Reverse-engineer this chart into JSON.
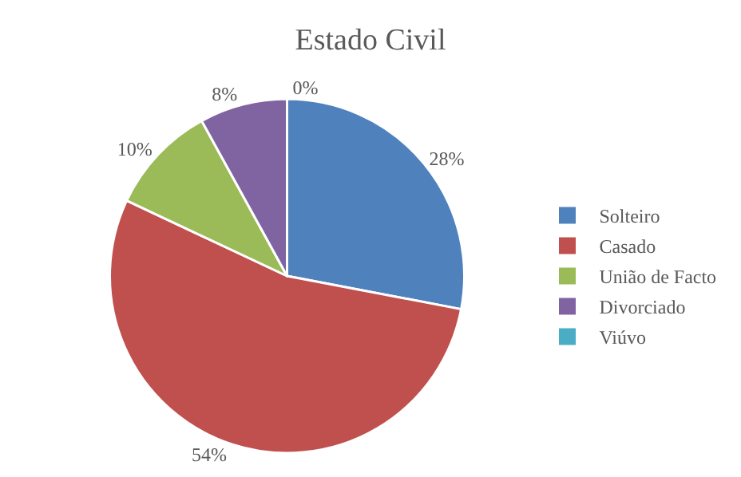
{
  "chart_data": {
    "type": "pie",
    "title": "Estado Civil",
    "categories": [
      "Solteiro",
      "Casado",
      "União de Facto",
      "Divorciado",
      "Viúvo"
    ],
    "values": [
      28,
      54,
      10,
      8,
      0
    ],
    "value_labels": [
      "28%",
      "54%",
      "10%",
      "8%",
      "0%"
    ],
    "colors": [
      "#4f81bd",
      "#c0504d",
      "#9bbb59",
      "#8064a2",
      "#4bacc6"
    ],
    "legend": "right"
  }
}
